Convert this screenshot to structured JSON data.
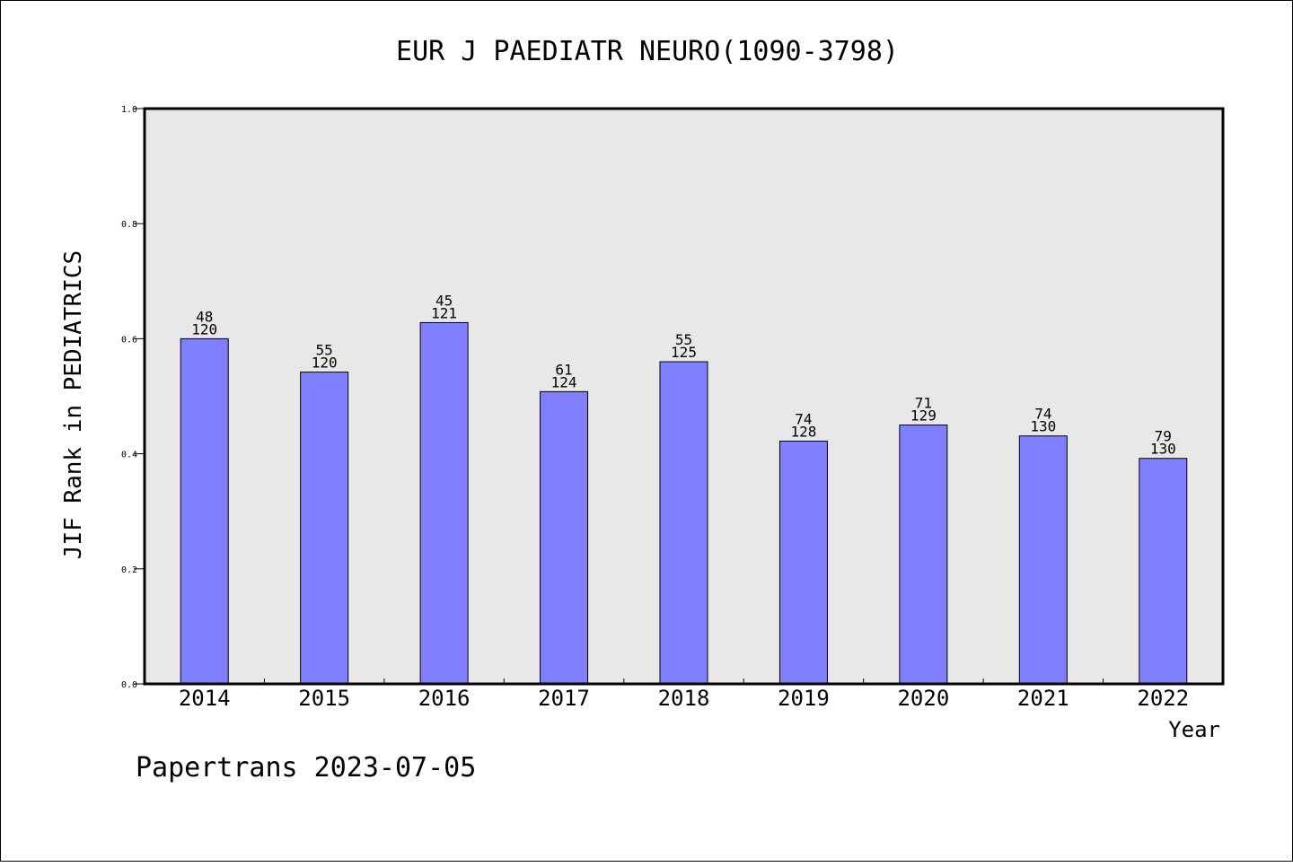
{
  "chart_data": {
    "type": "bar",
    "title": "EUR J PAEDIATR NEURO(1090-3798)",
    "xlabel": "Year",
    "ylabel": "JIF Rank in PEDIATRICS",
    "ylim": [
      0,
      1.0
    ],
    "yticks": [
      "0.0",
      "0.2",
      "0.4",
      "0.6",
      "0.8",
      "1.0"
    ],
    "categories": [
      "2014",
      "2015",
      "2016",
      "2017",
      "2018",
      "2019",
      "2020",
      "2021",
      "2022"
    ],
    "values": [
      0.6,
      0.542,
      0.628,
      0.508,
      0.56,
      0.422,
      0.45,
      0.431,
      0.392
    ],
    "ranks": [
      "48",
      "55",
      "45",
      "61",
      "55",
      "74",
      "71",
      "74",
      "79"
    ],
    "totals": [
      "120",
      "120",
      "121",
      "124",
      "125",
      "128",
      "129",
      "130",
      "130"
    ],
    "grid": false,
    "legend": "none",
    "colors": {
      "bar": "#8080ff",
      "plot_bg": "#e8e8e8"
    }
  },
  "footer": "Papertrans 2023-07-05"
}
